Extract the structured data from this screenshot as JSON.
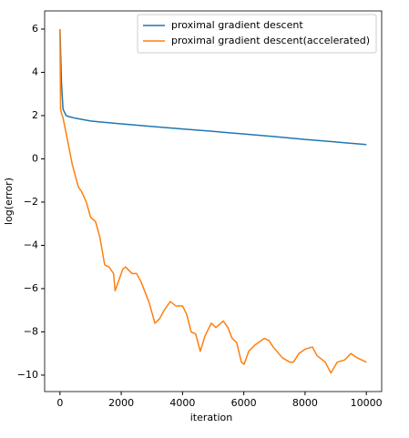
{
  "chart_data": {
    "type": "line",
    "xlabel": "iteration",
    "ylabel": "log(error)",
    "xlim": [
      -500,
      10500
    ],
    "xticks": [
      0,
      2000,
      4000,
      6000,
      8000,
      10000
    ],
    "ylim": [
      -10.76,
      6.84
    ],
    "yticks": [
      {
        "value": -10,
        "label": "−10"
      },
      {
        "value": -8,
        "label": "−8"
      },
      {
        "value": -6,
        "label": "−6"
      },
      {
        "value": -4,
        "label": "−4"
      },
      {
        "value": -2,
        "label": "−2"
      },
      0,
      2,
      4,
      6
    ],
    "legend": "upper right",
    "series": [
      {
        "name": "proximal gradient descent",
        "color": "#1f77b4",
        "x": [
          0,
          50,
          100,
          200,
          300,
          500,
          1000,
          1500,
          2000,
          3000,
          4000,
          5000,
          6000,
          7000,
          8000,
          9000,
          10000
        ],
        "values": [
          6,
          3.5,
          2.3,
          2.0,
          1.95,
          1.88,
          1.75,
          1.68,
          1.62,
          1.5,
          1.38,
          1.27,
          1.15,
          1.03,
          0.9,
          0.78,
          0.66
        ]
      },
      {
        "name": "proximal gradient descent(accelerated)",
        "color": "#ff7f0e",
        "x": [
          0,
          20,
          50,
          100,
          200,
          400,
          600,
          700,
          860,
          1000,
          1160,
          1300,
          1460,
          1600,
          1750,
          1800,
          1900,
          2050,
          2140,
          2350,
          2500,
          2650,
          2900,
          3100,
          3250,
          3400,
          3600,
          3780,
          4000,
          4140,
          4280,
          4430,
          4580,
          4730,
          4940,
          5090,
          5330,
          5480,
          5620,
          5770,
          5920,
          6010,
          6160,
          6370,
          6670,
          6820,
          6960,
          7260,
          7500,
          7620,
          7800,
          8000,
          8240,
          8390,
          8660,
          8840,
          9050,
          9290,
          9500,
          9700,
          10000
        ],
        "values": [
          6,
          2.3,
          2.1,
          1.9,
          1.2,
          -0.25,
          -1.3,
          -1.5,
          -2,
          -2.7,
          -2.9,
          -3.6,
          -4.9,
          -5,
          -5.3,
          -6.1,
          -5.7,
          -5.1,
          -5,
          -5.3,
          -5.3,
          -5.7,
          -6.6,
          -7.6,
          -7.4,
          -7,
          -6.6,
          -6.8,
          -6.8,
          -7.2,
          -8,
          -8.1,
          -8.9,
          -8.2,
          -7.6,
          -7.8,
          -7.5,
          -7.8,
          -8.3,
          -8.5,
          -9.4,
          -9.5,
          -8.9,
          -8.6,
          -8.3,
          -8.4,
          -8.7,
          -9.2,
          -9.4,
          -9.4,
          -9,
          -8.8,
          -8.7,
          -9.1,
          -9.4,
          -9.9,
          -9.4,
          -9.3,
          -9,
          -9.2,
          -9.4
        ]
      }
    ]
  }
}
